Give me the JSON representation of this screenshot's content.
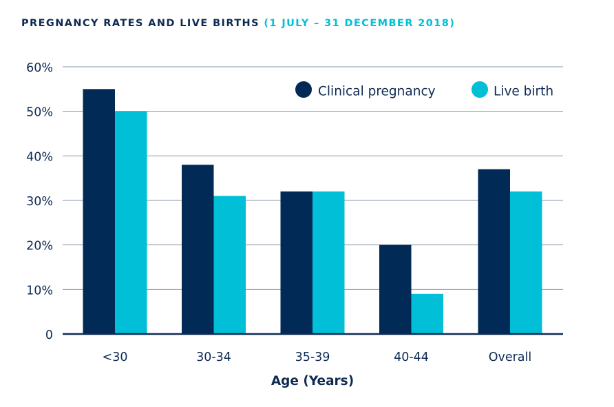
{
  "chart_data": {
    "type": "bar",
    "title": "PREGNANCY RATES AND LIVE BIRTHS",
    "subtitle": "(1 JULY – 31 DECEMBER 2018)",
    "xlabel": "Age (Years)",
    "ylabel": "",
    "categories": [
      "<30",
      "30-34",
      "35-39",
      "40-44",
      "Overall"
    ],
    "series": [
      {
        "name": "Clinical pregnancy",
        "color": "#022a57",
        "values": [
          55,
          38,
          32,
          20,
          37
        ]
      },
      {
        "name": "Live birth",
        "color": "#00bfd6",
        "values": [
          50,
          31,
          32,
          9,
          32
        ]
      }
    ],
    "ylim": [
      0,
      60
    ],
    "yticks": [
      {
        "value": 0,
        "label": "0"
      },
      {
        "value": 10,
        "label": "10%"
      },
      {
        "value": 20,
        "label": "20%"
      },
      {
        "value": 30,
        "label": "30%"
      },
      {
        "value": 40,
        "label": "40%"
      },
      {
        "value": 50,
        "label": "50%"
      },
      {
        "value": 60,
        "label": "60%"
      }
    ],
    "grid": true,
    "legend_position": "top-right",
    "colors": {
      "text": "#0e2a52",
      "grid": "#8a94a3",
      "axis": "#0e2a52"
    }
  }
}
